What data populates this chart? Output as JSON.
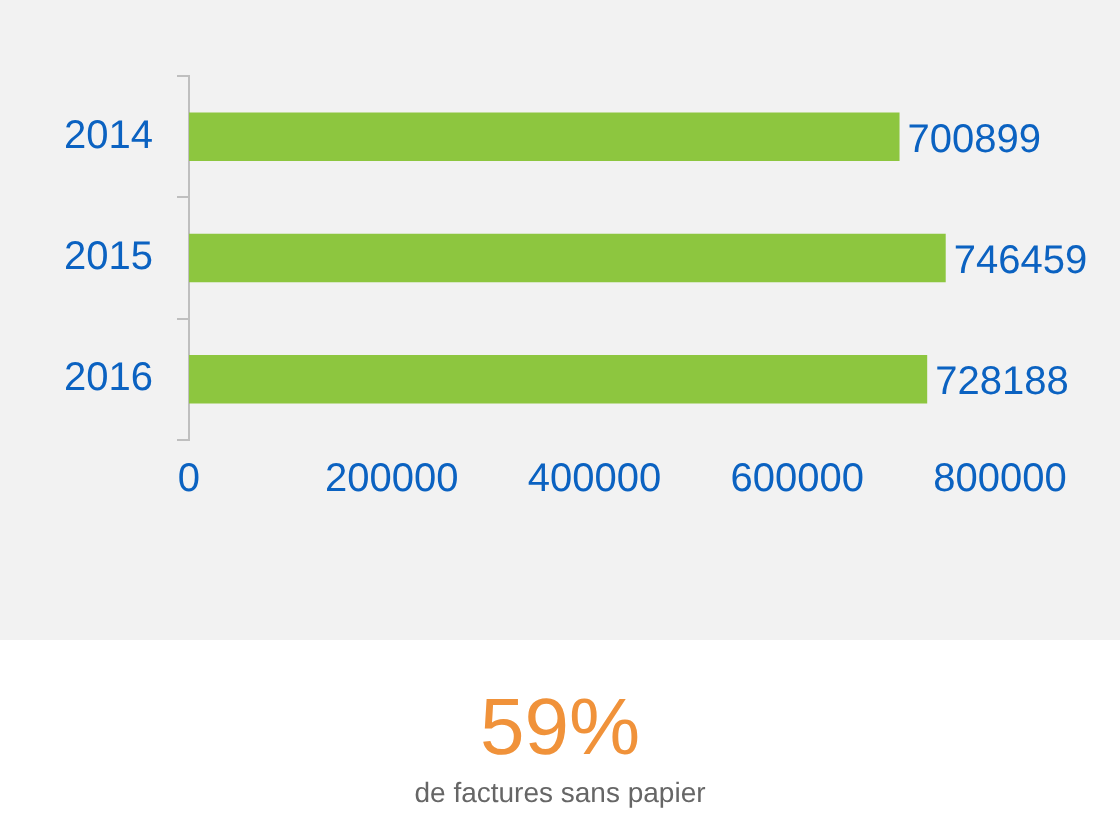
{
  "chart_data": {
    "type": "bar",
    "orientation": "horizontal",
    "categories": [
      "2014",
      "2015",
      "2016"
    ],
    "values": [
      700899,
      746459,
      728188
    ],
    "color": "#8dc63f",
    "xlim": [
      0,
      800000
    ],
    "xticks": [
      0,
      200000,
      400000,
      600000,
      800000
    ],
    "grid": false,
    "legend": false,
    "data_labels": true,
    "annotations": [
      "59%",
      "de factures sans papier"
    ]
  }
}
